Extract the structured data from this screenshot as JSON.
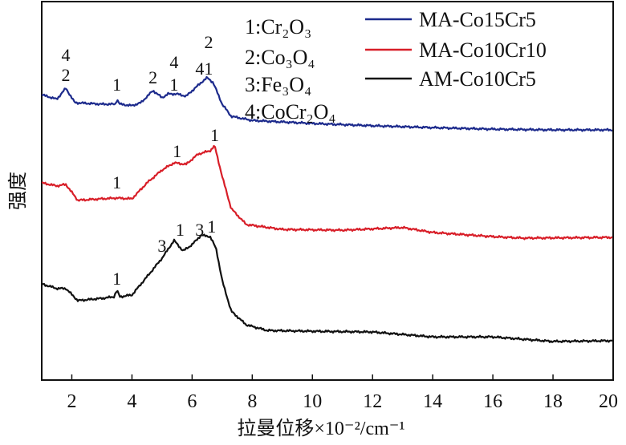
{
  "chart_data": {
    "type": "line",
    "title": "",
    "xlabel": "拉曼位移×10⁻²/cm⁻¹",
    "ylabel": "强度",
    "xlim": [
      1,
      20
    ],
    "ylim": [
      0,
      100
    ],
    "xticks": [
      2,
      4,
      6,
      8,
      10,
      12,
      14,
      16,
      18,
      20
    ],
    "grid": false,
    "legend_placement": "top-right",
    "phase_legend": [
      "1:Cr₂O₃",
      "2:Co₃O₄",
      "3:Fe₃O₄",
      "4:CoCr₂O₄"
    ],
    "series": [
      {
        "name": "MA-Co15Cr5",
        "color": "#1c2a8c",
        "x": [
          1,
          1.5,
          1.8,
          2.1,
          3,
          3.45,
          3.5,
          3.6,
          4,
          4.3,
          4.7,
          5.0,
          5.2,
          5.5,
          5.8,
          6.3,
          6.5,
          6.7,
          7.0,
          7.3,
          8,
          10,
          12,
          14,
          16,
          18,
          20
        ],
        "y": [
          75.4,
          74.2,
          77.1,
          73.3,
          72.9,
          72.9,
          74.2,
          72.9,
          72.5,
          73.3,
          76.5,
          74.6,
          75.6,
          75.6,
          75.0,
          78.6,
          79.9,
          78.6,
          72.9,
          69.7,
          68.6,
          67.8,
          67.2,
          66.7,
          66.3,
          66.1,
          66.1
        ]
      },
      {
        "name": "MA-Co10Cr10",
        "color": "#d81e28",
        "x": [
          1,
          1.5,
          1.8,
          2.2,
          3,
          3.5,
          4,
          4.5,
          5,
          5.4,
          5.8,
          6.2,
          6.6,
          6.75,
          7.0,
          7.3,
          7.8,
          9,
          11,
          13,
          14,
          16,
          17,
          20
        ],
        "y": [
          52.1,
          51.3,
          51.7,
          47.5,
          47.9,
          48.1,
          47.9,
          52.1,
          55.5,
          57.4,
          57.0,
          59.7,
          60.6,
          61.9,
          53.8,
          45.3,
          41.1,
          39.8,
          39.6,
          40.3,
          39.0,
          37.9,
          37.5,
          37.7
        ]
      },
      {
        "name": "AM-Co10Cr5",
        "color": "#111111",
        "x": [
          1,
          1.5,
          1.8,
          2.2,
          3,
          3.4,
          3.5,
          3.6,
          4,
          4.5,
          5,
          5.4,
          5.7,
          6.0,
          6.3,
          6.6,
          6.8,
          7.0,
          7.3,
          7.8,
          8.5,
          10,
          12,
          14,
          16,
          18,
          20
        ],
        "y": [
          25.4,
          24.2,
          24.2,
          21.0,
          21.6,
          22.0,
          23.7,
          22.0,
          22.5,
          27.3,
          32.2,
          36.9,
          34.1,
          35.8,
          38.3,
          37.9,
          34.7,
          26.3,
          18.2,
          14.6,
          13.1,
          12.9,
          12.7,
          11.4,
          11.4,
          10.2,
          10.4
        ]
      }
    ],
    "annotations": [
      {
        "series": "MA-Co15Cr5",
        "text": "4",
        "x": 1.8,
        "y": 86.0
      },
      {
        "series": "MA-Co15Cr5",
        "text": "2",
        "x": 1.8,
        "y": 80.7
      },
      {
        "series": "MA-Co15Cr5",
        "text": "1",
        "x": 3.5,
        "y": 78.2
      },
      {
        "series": "MA-Co15Cr5",
        "text": "2",
        "x": 4.7,
        "y": 80.1
      },
      {
        "series": "MA-Co15Cr5",
        "text": "4",
        "x": 5.4,
        "y": 84.1
      },
      {
        "series": "MA-Co15Cr5",
        "text": "1",
        "x": 5.4,
        "y": 78.2
      },
      {
        "series": "MA-Co15Cr5",
        "text": "41",
        "x": 6.4,
        "y": 82.4
      },
      {
        "series": "MA-Co15Cr5",
        "text": "2",
        "x": 6.55,
        "y": 89.4
      },
      {
        "series": "MA-Co10Cr10",
        "text": "1",
        "x": 3.5,
        "y": 52.3
      },
      {
        "series": "MA-Co10Cr10",
        "text": "1",
        "x": 5.5,
        "y": 60.6
      },
      {
        "series": "MA-Co10Cr10",
        "text": "1",
        "x": 6.75,
        "y": 64.8
      },
      {
        "series": "AM-Co10Cr5",
        "text": "1",
        "x": 3.5,
        "y": 26.9
      },
      {
        "series": "AM-Co10Cr5",
        "text": "3",
        "x": 5.0,
        "y": 35.6
      },
      {
        "series": "AM-Co10Cr5",
        "text": "1",
        "x": 5.6,
        "y": 39.8
      },
      {
        "series": "AM-Co10Cr5",
        "text": "3",
        "x": 6.25,
        "y": 39.8
      },
      {
        "series": "AM-Co10Cr5",
        "text": "1",
        "x": 6.65,
        "y": 40.7
      }
    ]
  }
}
